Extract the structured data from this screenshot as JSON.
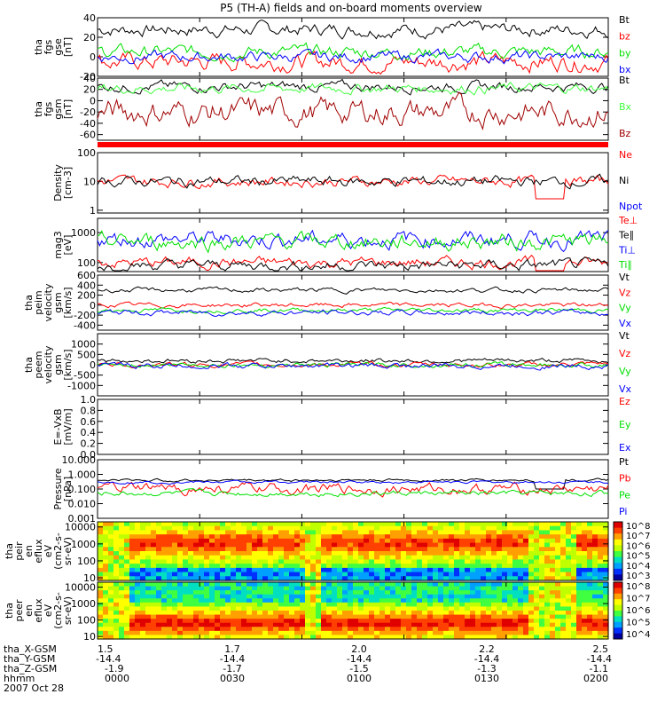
{
  "title": "P5 (TH-A) fields and on-board moments overview",
  "date_label": "2007 Oct 28",
  "colors": {
    "black": "#000000",
    "red": "#ff0000",
    "green": "#00e000",
    "blue": "#0000ff",
    "darkred": "#a00000",
    "lightgreen": "#40ff40"
  },
  "chart_data": {
    "type": "line",
    "x_range_hours": [
      1.5,
      2.5
    ],
    "x_ticks": [
      1.5,
      1.7,
      1.9,
      2.1,
      2.3,
      2.5
    ],
    "x_tick_labels": [
      [
        "1.5",
        "-14.4",
        "-1.9",
        "0000"
      ],
      [
        "1.7",
        "-14.4",
        "-1.7",
        "0030"
      ],
      [
        "2.0",
        "-14.4",
        "-1.5",
        "0100"
      ],
      [
        "2.2",
        "-14.4",
        "-1.3",
        "0130"
      ],
      [
        "2.5",
        "-14.4",
        "-1.1",
        "0200"
      ]
    ],
    "x_row_labels": [
      "tha_X-GSM",
      "tha_Y-GSM",
      "tha_Z-GSM",
      "hhmm"
    ],
    "panels": [
      {
        "id": "fgs-gse",
        "ylabel": [
          "tha",
          "fgs",
          "gse",
          "[nT]"
        ],
        "ylim": [
          -20,
          40
        ],
        "y_ticks": [
          -20,
          0,
          20,
          40
        ],
        "y_tick_labels": [
          "-20",
          "0",
          "20",
          "40"
        ],
        "series": [
          {
            "name": "Bt",
            "color": "#000000",
            "base": 28,
            "amp": 6
          },
          {
            "name": "bz",
            "color": "#ff0000",
            "base": -5,
            "amp": 8
          },
          {
            "name": "by",
            "color": "#00e000",
            "base": 5,
            "amp": 6
          },
          {
            "name": "bx",
            "color": "#0000ff",
            "base": 0,
            "amp": 5
          }
        ]
      },
      {
        "id": "fgs-gsm",
        "ylabel": [
          "tha",
          "fgs",
          "gsm",
          "[nT]"
        ],
        "ylim": [
          -70,
          40
        ],
        "y_ticks": [
          -60,
          -40,
          -20,
          0,
          20,
          40
        ],
        "y_tick_labels": [
          "-60",
          "-40",
          "-20",
          "0",
          "20",
          "40"
        ],
        "series": [
          {
            "name": "Bt",
            "color": "#000000",
            "base": 25,
            "amp": 8
          },
          {
            "name": "Bx",
            "color": "#40ff40",
            "base": 22,
            "amp": 8
          },
          {
            "name": "Bz",
            "color": "#a00000",
            "base": -20,
            "amp": 20
          }
        ]
      },
      {
        "id": "density",
        "ylabel": [
          "Density",
          "[cm-3]"
        ],
        "ylim_log": [
          0.8,
          100
        ],
        "y_ticks": [
          1,
          10,
          100
        ],
        "y_tick_labels": [
          "1",
          "10",
          "100"
        ],
        "series": [
          {
            "name": "Ne",
            "color": "#ff0000",
            "base": 10,
            "amp": 0.2
          },
          {
            "name": "Ni",
            "color": "#000000",
            "base": 10,
            "amp": 0.2
          },
          {
            "name": "Npot",
            "color": "#0000ff",
            "base": 0,
            "amp": 0
          }
        ]
      },
      {
        "id": "temperature",
        "ylabel": [
          "mag3",
          "[eV]"
        ],
        "ylim_log": [
          50,
          3000
        ],
        "y_ticks": [
          100,
          1000
        ],
        "y_tick_labels": [
          "100",
          "1000"
        ],
        "series": [
          {
            "name": "Te⊥",
            "color": "#ff0000",
            "base": 100,
            "amp": 0.2
          },
          {
            "name": "Te∥",
            "color": "#000000",
            "base": 80,
            "amp": 0.2
          },
          {
            "name": "Ti⊥",
            "color": "#0000ff",
            "base": 600,
            "amp": 0.3
          },
          {
            "name": "Ti∥",
            "color": "#00e000",
            "base": 500,
            "amp": 0.3
          }
        ]
      },
      {
        "id": "peim-velocity",
        "ylabel": [
          "tha",
          "peim",
          "velocity",
          "gsm",
          "[km/s]"
        ],
        "ylim": [
          -500,
          600
        ],
        "y_ticks": [
          -400,
          -200,
          0,
          200,
          400,
          600
        ],
        "y_tick_labels": [
          "-400",
          "-200",
          "0",
          "200",
          "400",
          "600"
        ],
        "series": [
          {
            "name": "Vt",
            "color": "#000000",
            "base": 300,
            "amp": 40
          },
          {
            "name": "Vz",
            "color": "#ff0000",
            "base": 0,
            "amp": 40
          },
          {
            "name": "Vy",
            "color": "#00e000",
            "base": -100,
            "amp": 40
          },
          {
            "name": "Vx",
            "color": "#0000ff",
            "base": -150,
            "amp": 50
          }
        ]
      },
      {
        "id": "peem-velocity",
        "ylabel": [
          "tha",
          "peem",
          "velocity",
          "gsm",
          "[km/s]"
        ],
        "ylim": [
          -1500,
          1500
        ],
        "y_ticks": [
          -1000,
          -500,
          0,
          500,
          1000
        ],
        "y_tick_labels": [
          "-1000",
          "-500",
          "0",
          "500",
          "1000"
        ],
        "series": [
          {
            "name": "Vt",
            "color": "#000000",
            "base": 200,
            "amp": 100
          },
          {
            "name": "Vz",
            "color": "#ff0000",
            "base": 0,
            "amp": 100
          },
          {
            "name": "Vy",
            "color": "#00e000",
            "base": 0,
            "amp": 100
          },
          {
            "name": "Vx",
            "color": "#0000ff",
            "base": -50,
            "amp": 120
          }
        ]
      },
      {
        "id": "efield",
        "ylabel": [
          "E=-VxB",
          "[mV/m]"
        ],
        "ylim": [
          0,
          1
        ],
        "y_ticks": [
          0,
          0.2,
          0.4,
          0.6,
          0.8,
          1.0
        ],
        "y_tick_labels": [
          "0.0",
          "0.2",
          "0.4",
          "0.6",
          "0.8",
          "1.0"
        ],
        "series": [
          {
            "name": "Ez",
            "color": "#ff0000"
          },
          {
            "name": "Ey",
            "color": "#00e000"
          },
          {
            "name": "Ex",
            "color": "#0000ff"
          }
        ]
      },
      {
        "id": "pressure",
        "ylabel": [
          "Pressure",
          "[nPa]"
        ],
        "ylim_log": [
          0.001,
          10
        ],
        "y_ticks": [
          0.001,
          0.01,
          0.1,
          1,
          10
        ],
        "y_tick_labels": [
          "0.001",
          "0.010",
          "0.100",
          "1.000",
          "10.000"
        ],
        "series": [
          {
            "name": "Pt",
            "color": "#000000",
            "base": 0.4,
            "amp": 0.1
          },
          {
            "name": "Pb",
            "color": "#ff0000",
            "base": 0.1,
            "amp": 0.4
          },
          {
            "name": "Pe",
            "color": "#00e000",
            "base": 0.05,
            "amp": 0.2
          },
          {
            "name": "Pi",
            "color": "#0000ff",
            "base": 0.3,
            "amp": 0.1
          }
        ]
      }
    ],
    "spectrograms": [
      {
        "id": "peir-spectrogram",
        "ylabel": [
          "tha",
          "peir",
          "en",
          "eflux",
          "eV",
          "(cm2-s-",
          "sr-eV)"
        ],
        "ylim_log": [
          7,
          20000
        ],
        "y_ticks": [
          10,
          100,
          1000,
          10000
        ],
        "y_tick_labels": [
          "10",
          "100",
          "1000",
          "10000"
        ],
        "colorbar_labels": [
          "10^8",
          "10^7",
          "10^6",
          "10^5",
          "10^4",
          "10^3"
        ]
      },
      {
        "id": "peer-spectrogram",
        "ylabel": [
          "tha",
          "peer",
          "en",
          "eflux",
          "eV",
          "(cm2-s-",
          "sr-eV)"
        ],
        "ylim_log": [
          7,
          20000
        ],
        "y_ticks": [
          10,
          100,
          1000,
          10000
        ],
        "y_tick_labels": [
          "10",
          "100",
          "1000",
          "10000"
        ],
        "colorbar_labels": [
          "10^8",
          "10^7",
          "10^6",
          "10^5",
          "10^4"
        ]
      }
    ]
  }
}
